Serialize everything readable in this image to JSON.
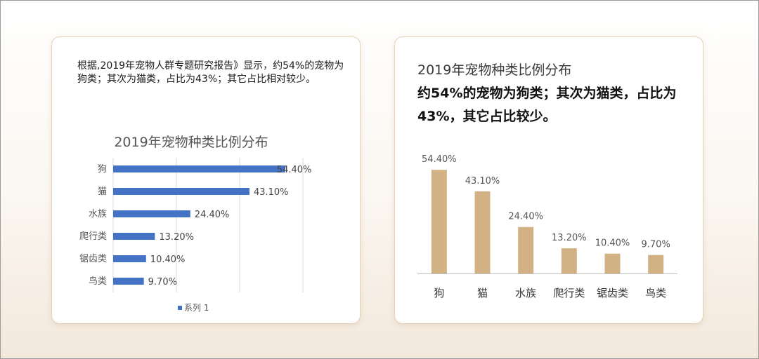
{
  "left_card": {
    "description": "根据,2019年宠物人群专题研究报告》显示，约54%的宠物为狗类；其次为猫类，占比为43%；其它占比相对较少。"
  },
  "right_card": {
    "title": "2019年宠物种类比例分布",
    "description": "约54%的宠物为狗类；其次为猫类，占比为43%，其它占比较少。"
  },
  "colors": {
    "bar_left": "#4472c4",
    "bar_right": "#d2b184",
    "grid": "#d9d9d9",
    "axis": "#bfbfbf"
  },
  "chart_data": [
    {
      "type": "bar",
      "orientation": "horizontal",
      "title": "2019年宠物种类比例分布",
      "categories": [
        "狗",
        "猫",
        "水族",
        "爬行类",
        "锯齿类",
        "鸟类"
      ],
      "series": [
        {
          "name": "系列 1",
          "values": [
            54.4,
            43.1,
            24.4,
            13.2,
            10.4,
            9.7
          ]
        }
      ],
      "data_labels": [
        "54.40%",
        "43.10%",
        "24.40%",
        "13.20%",
        "10.40%",
        "9.70%"
      ],
      "xlim": [
        0,
        60
      ],
      "grid": true,
      "legend": "bottom"
    },
    {
      "type": "bar",
      "orientation": "vertical",
      "categories": [
        "狗",
        "猫",
        "水族",
        "爬行类",
        "锯齿类",
        "鸟类"
      ],
      "values": [
        54.4,
        43.1,
        24.4,
        13.2,
        10.4,
        9.7
      ],
      "data_labels": [
        "54.40%",
        "43.10%",
        "24.40%",
        "13.20%",
        "10.40%",
        "9.70%"
      ],
      "ylim": [
        0,
        60
      ],
      "grid": false
    }
  ]
}
